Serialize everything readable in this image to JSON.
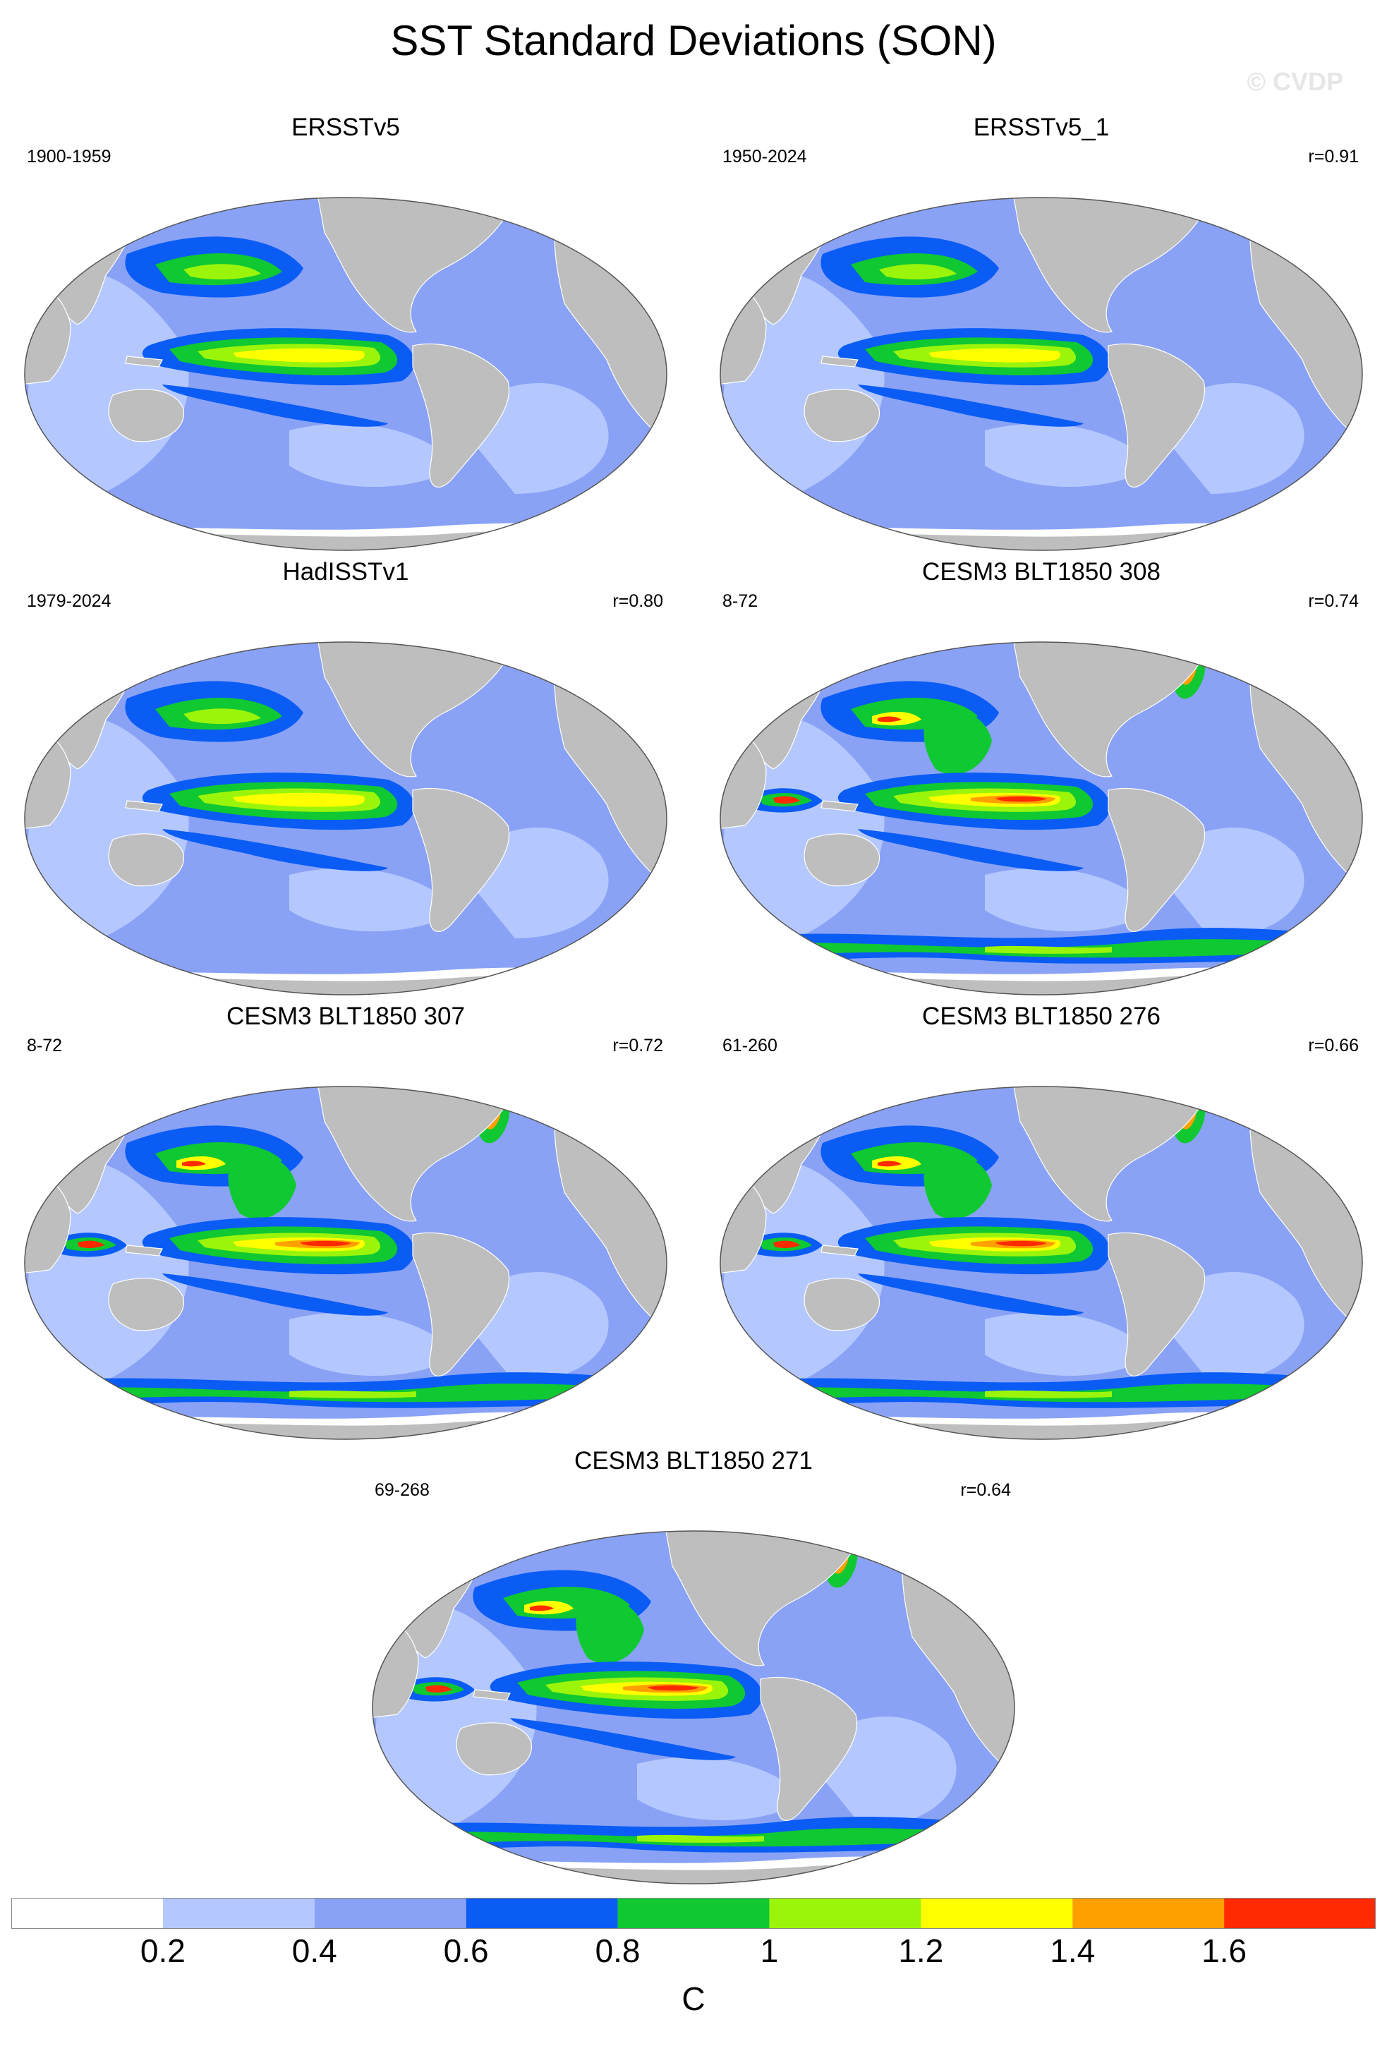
{
  "title": "SST Standard Deviations (SON)",
  "watermark": "© CVDP",
  "panels": [
    {
      "title": "ERSSTv5",
      "period": "1900-1959",
      "corr": ""
    },
    {
      "title": "ERSSTv5_1",
      "period": "1950-2024",
      "corr": "r=0.91"
    },
    {
      "title": "HadISSTv1",
      "period": "1979-2024",
      "corr": "r=0.80"
    },
    {
      "title": "CESM3 BLT1850 308",
      "period": "8-72",
      "corr": "r=0.74"
    },
    {
      "title": "CESM3 BLT1850 307",
      "period": "8-72",
      "corr": "r=0.72"
    },
    {
      "title": "CESM3 BLT1850 276",
      "period": "61-260",
      "corr": "r=0.66"
    },
    {
      "title": "CESM3 BLT1850 271",
      "period": "69-268",
      "corr": "r=0.64"
    }
  ],
  "colorbar": {
    "unit": "C",
    "tick_labels": [
      "0.2",
      "0.4",
      "0.6",
      "0.8",
      "1",
      "1.2",
      "1.4",
      "1.6"
    ],
    "colors": [
      "#ffffff",
      "#b4c8ff",
      "#8aa2f5",
      "#0a5cf5",
      "#0fc832",
      "#9bf50a",
      "#ffff00",
      "#ffa000",
      "#ff2a00"
    ],
    "land_color": "#bebebe"
  }
}
